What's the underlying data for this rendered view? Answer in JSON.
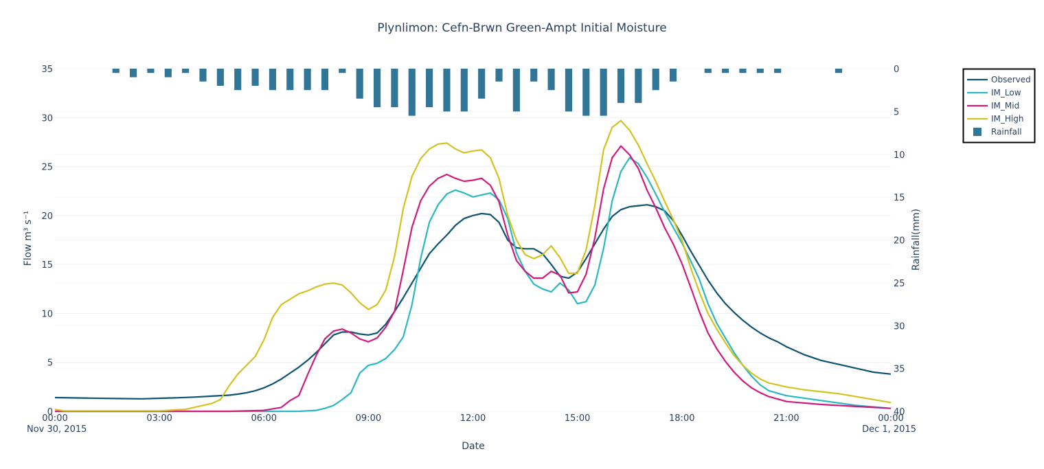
{
  "chart_data": {
    "type": "line",
    "title": "Plynlimon: Cefn-Brwn Green-Ampt Initial Moisture",
    "xlabel": "Date",
    "ylabel": "Flow m³ s⁻¹",
    "y2label": "Rainfall(mm)",
    "x_range": [
      "2015-11-30 00:00",
      "2015-12-01 00:00"
    ],
    "x_ticks": [
      {
        "time": "2015-11-30 00:00",
        "label": "00:00",
        "sublabel": "Nov 30, 2015"
      },
      {
        "time": "2015-11-30 03:00",
        "label": "03:00",
        "sublabel": ""
      },
      {
        "time": "2015-11-30 06:00",
        "label": "06:00",
        "sublabel": ""
      },
      {
        "time": "2015-11-30 09:00",
        "label": "09:00",
        "sublabel": ""
      },
      {
        "time": "2015-11-30 12:00",
        "label": "12:00",
        "sublabel": ""
      },
      {
        "time": "2015-11-30 15:00",
        "label": "15:00",
        "sublabel": ""
      },
      {
        "time": "2015-11-30 18:00",
        "label": "18:00",
        "sublabel": ""
      },
      {
        "time": "2015-11-30 21:00",
        "label": "21:00",
        "sublabel": ""
      },
      {
        "time": "2015-12-01 00:00",
        "label": "00:00",
        "sublabel": "Dec 1, 2015"
      }
    ],
    "ylim": [
      0,
      35
    ],
    "y_ticks": [
      0,
      5,
      10,
      15,
      20,
      25,
      30,
      35
    ],
    "y2lim": [
      0,
      40
    ],
    "y2_reversed": true,
    "y2_ticks": [
      0,
      5,
      10,
      15,
      20,
      25,
      30,
      35,
      40
    ],
    "legend_position": "top-right",
    "series": [
      {
        "name": "Observed",
        "kind": "line",
        "color": "#0b5371",
        "x": [
          "2015-11-30 00:00",
          "2015-11-30 01:00",
          "2015-11-30 02:00",
          "2015-11-30 02:30",
          "2015-11-30 03:00",
          "2015-11-30 03:30",
          "2015-11-30 04:00",
          "2015-11-30 04:30",
          "2015-11-30 05:00",
          "2015-11-30 05:15",
          "2015-11-30 05:30",
          "2015-11-30 05:45",
          "2015-11-30 06:00",
          "2015-11-30 06:15",
          "2015-11-30 06:30",
          "2015-11-30 06:45",
          "2015-11-30 07:00",
          "2015-11-30 07:15",
          "2015-11-30 07:30",
          "2015-11-30 07:45",
          "2015-11-30 08:00",
          "2015-11-30 08:15",
          "2015-11-30 08:30",
          "2015-11-30 08:45",
          "2015-11-30 09:00",
          "2015-11-30 09:15",
          "2015-11-30 09:30",
          "2015-11-30 09:45",
          "2015-11-30 10:00",
          "2015-11-30 10:15",
          "2015-11-30 10:30",
          "2015-11-30 10:45",
          "2015-11-30 11:00",
          "2015-11-30 11:15",
          "2015-11-30 11:30",
          "2015-11-30 11:45",
          "2015-11-30 12:00",
          "2015-11-30 12:15",
          "2015-11-30 12:30",
          "2015-11-30 12:45",
          "2015-11-30 13:00",
          "2015-11-30 13:15",
          "2015-11-30 13:30",
          "2015-11-30 13:45",
          "2015-11-30 14:00",
          "2015-11-30 14:15",
          "2015-11-30 14:30",
          "2015-11-30 14:45",
          "2015-11-30 15:00",
          "2015-11-30 15:15",
          "2015-11-30 15:30",
          "2015-11-30 15:45",
          "2015-11-30 16:00",
          "2015-11-30 16:15",
          "2015-11-30 16:30",
          "2015-11-30 16:45",
          "2015-11-30 17:00",
          "2015-11-30 17:15",
          "2015-11-30 17:30",
          "2015-11-30 17:45",
          "2015-11-30 18:00",
          "2015-11-30 18:15",
          "2015-11-30 18:30",
          "2015-11-30 18:45",
          "2015-11-30 19:00",
          "2015-11-30 19:15",
          "2015-11-30 19:30",
          "2015-11-30 19:45",
          "2015-11-30 20:00",
          "2015-11-30 20:15",
          "2015-11-30 20:30",
          "2015-11-30 20:45",
          "2015-11-30 21:00",
          "2015-11-30 21:30",
          "2015-11-30 22:00",
          "2015-11-30 22:30",
          "2015-11-30 23:00",
          "2015-11-30 23:30",
          "2015-12-01 00:00"
        ],
        "y": [
          1.4,
          1.35,
          1.3,
          1.28,
          1.33,
          1.38,
          1.45,
          1.55,
          1.65,
          1.75,
          1.9,
          2.1,
          2.4,
          2.8,
          3.3,
          3.9,
          4.5,
          5.2,
          6.0,
          6.9,
          7.8,
          8.1,
          8.1,
          7.9,
          7.8,
          8.0,
          8.9,
          10.2,
          11.6,
          13.1,
          14.6,
          16.1,
          17.1,
          18.0,
          19.0,
          19.7,
          20.0,
          20.2,
          20.1,
          19.3,
          17.5,
          16.7,
          16.6,
          16.6,
          16.1,
          15.0,
          13.8,
          13.6,
          14.2,
          15.6,
          17.1,
          18.6,
          19.9,
          20.6,
          20.9,
          21.0,
          21.1,
          20.9,
          20.5,
          19.5,
          18.0,
          16.4,
          14.9,
          13.4,
          12.1,
          11.0,
          10.1,
          9.3,
          8.6,
          8.0,
          7.5,
          7.1,
          6.6,
          5.8,
          5.2,
          4.8,
          4.4,
          4.0,
          3.8
        ]
      },
      {
        "name": "IM_Low",
        "kind": "line",
        "color": "#2ab7c0",
        "x": [
          "2015-11-30 00:00",
          "2015-11-30 01:00",
          "2015-11-30 02:00",
          "2015-11-30 03:00",
          "2015-11-30 04:00",
          "2015-11-30 05:00",
          "2015-11-30 06:00",
          "2015-11-30 07:00",
          "2015-11-30 07:30",
          "2015-11-30 07:45",
          "2015-11-30 08:00",
          "2015-11-30 08:15",
          "2015-11-30 08:30",
          "2015-11-30 08:45",
          "2015-11-30 09:00",
          "2015-11-30 09:15",
          "2015-11-30 09:30",
          "2015-11-30 09:45",
          "2015-11-30 10:00",
          "2015-11-30 10:15",
          "2015-11-30 10:30",
          "2015-11-30 10:45",
          "2015-11-30 11:00",
          "2015-11-30 11:15",
          "2015-11-30 11:30",
          "2015-11-30 11:45",
          "2015-11-30 12:00",
          "2015-11-30 12:15",
          "2015-11-30 12:30",
          "2015-11-30 12:45",
          "2015-11-30 13:00",
          "2015-11-30 13:15",
          "2015-11-30 13:30",
          "2015-11-30 13:45",
          "2015-11-30 14:00",
          "2015-11-30 14:15",
          "2015-11-30 14:30",
          "2015-11-30 14:45",
          "2015-11-30 15:00",
          "2015-11-30 15:15",
          "2015-11-30 15:30",
          "2015-11-30 15:45",
          "2015-11-30 16:00",
          "2015-11-30 16:15",
          "2015-11-30 16:30",
          "2015-11-30 16:45",
          "2015-11-30 17:00",
          "2015-11-30 17:15",
          "2015-11-30 17:30",
          "2015-11-30 17:45",
          "2015-11-30 18:00",
          "2015-11-30 18:15",
          "2015-11-30 18:30",
          "2015-11-30 18:45",
          "2015-11-30 19:00",
          "2015-11-30 19:15",
          "2015-11-30 19:30",
          "2015-11-30 19:45",
          "2015-11-30 20:00",
          "2015-11-30 20:15",
          "2015-11-30 20:30",
          "2015-11-30 21:00",
          "2015-11-30 22:00",
          "2015-11-30 23:00",
          "2015-12-01 00:00"
        ],
        "y": [
          0,
          0,
          0,
          0,
          0,
          0,
          0,
          0,
          0.1,
          0.3,
          0.6,
          1.2,
          1.9,
          3.9,
          4.7,
          4.9,
          5.4,
          6.3,
          7.6,
          10.9,
          15.6,
          19.3,
          21.1,
          22.2,
          22.6,
          22.3,
          21.9,
          22.1,
          22.3,
          21.6,
          19.7,
          16.2,
          14.3,
          13.0,
          12.5,
          12.2,
          13.1,
          12.4,
          11.0,
          11.2,
          12.9,
          16.6,
          21.5,
          24.5,
          25.9,
          25.3,
          23.9,
          22.2,
          20.4,
          18.8,
          17.2,
          15.4,
          13.5,
          11.0,
          9.0,
          7.5,
          6.0,
          4.7,
          3.6,
          2.7,
          2.1,
          1.6,
          1.1,
          0.6,
          0.3
        ]
      },
      {
        "name": "IM_Mid",
        "kind": "line",
        "color": "#d01b7d",
        "x": [
          "2015-11-30 00:00",
          "2015-11-30 01:00",
          "2015-11-30 02:00",
          "2015-11-30 03:00",
          "2015-11-30 04:00",
          "2015-11-30 05:00",
          "2015-11-30 06:00",
          "2015-11-30 06:30",
          "2015-11-30 06:45",
          "2015-11-30 07:00",
          "2015-11-30 07:15",
          "2015-11-30 07:30",
          "2015-11-30 07:45",
          "2015-11-30 08:00",
          "2015-11-30 08:15",
          "2015-11-30 08:30",
          "2015-11-30 08:45",
          "2015-11-30 09:00",
          "2015-11-30 09:15",
          "2015-11-30 09:30",
          "2015-11-30 09:45",
          "2015-11-30 10:00",
          "2015-11-30 10:15",
          "2015-11-30 10:30",
          "2015-11-30 10:45",
          "2015-11-30 11:00",
          "2015-11-30 11:15",
          "2015-11-30 11:30",
          "2015-11-30 11:45",
          "2015-11-30 12:00",
          "2015-11-30 12:15",
          "2015-11-30 12:30",
          "2015-11-30 12:45",
          "2015-11-30 13:00",
          "2015-11-30 13:15",
          "2015-11-30 13:30",
          "2015-11-30 13:45",
          "2015-11-30 14:00",
          "2015-11-30 14:15",
          "2015-11-30 14:30",
          "2015-11-30 14:45",
          "2015-11-30 15:00",
          "2015-11-30 15:15",
          "2015-11-30 15:30",
          "2015-11-30 15:45",
          "2015-11-30 16:00",
          "2015-11-30 16:15",
          "2015-11-30 16:30",
          "2015-11-30 16:45",
          "2015-11-30 17:00",
          "2015-11-30 17:15",
          "2015-11-30 17:30",
          "2015-11-30 17:45",
          "2015-11-30 18:00",
          "2015-11-30 18:15",
          "2015-11-30 18:30",
          "2015-11-30 18:45",
          "2015-11-30 19:00",
          "2015-11-30 19:15",
          "2015-11-30 19:30",
          "2015-11-30 19:45",
          "2015-11-30 20:00",
          "2015-11-30 20:15",
          "2015-11-30 20:30",
          "2015-11-30 21:00",
          "2015-11-30 22:00",
          "2015-11-30 23:00",
          "2015-12-01 00:00"
        ],
        "y": [
          0,
          0,
          0,
          0,
          0,
          0,
          0.1,
          0.4,
          1.1,
          1.6,
          3.7,
          5.7,
          7.4,
          8.2,
          8.4,
          8.0,
          7.4,
          7.1,
          7.5,
          8.6,
          10.2,
          14.4,
          18.8,
          21.5,
          23.0,
          23.8,
          24.2,
          23.8,
          23.5,
          23.6,
          23.8,
          23.1,
          21.4,
          18.0,
          15.4,
          14.3,
          13.6,
          13.6,
          14.3,
          13.9,
          12.1,
          12.2,
          14.0,
          17.7,
          22.7,
          25.9,
          27.1,
          26.2,
          24.8,
          22.6,
          20.8,
          18.8,
          17.1,
          15.1,
          12.7,
          10.2,
          8.0,
          6.4,
          5.1,
          4.0,
          3.1,
          2.4,
          1.9,
          1.5,
          1.0,
          0.7,
          0.5,
          0.3
        ]
      },
      {
        "name": "IM_High",
        "kind": "line",
        "color": "#d3c21f",
        "x": [
          "2015-11-30 00:00",
          "2015-11-30 00:15",
          "2015-11-30 01:00",
          "2015-11-30 02:00",
          "2015-11-30 03:00",
          "2015-11-30 03:45",
          "2015-11-30 04:15",
          "2015-11-30 04:30",
          "2015-11-30 04:45",
          "2015-11-30 05:00",
          "2015-11-30 05:15",
          "2015-11-30 05:30",
          "2015-11-30 05:45",
          "2015-11-30 06:00",
          "2015-11-30 06:15",
          "2015-11-30 06:30",
          "2015-11-30 07:00",
          "2015-11-30 07:15",
          "2015-11-30 07:30",
          "2015-11-30 07:45",
          "2015-11-30 08:00",
          "2015-11-30 08:15",
          "2015-11-30 08:30",
          "2015-11-30 08:45",
          "2015-11-30 09:00",
          "2015-11-30 09:15",
          "2015-11-30 09:30",
          "2015-11-30 09:45",
          "2015-11-30 10:00",
          "2015-11-30 10:15",
          "2015-11-30 10:30",
          "2015-11-30 10:45",
          "2015-11-30 11:00",
          "2015-11-30 11:15",
          "2015-11-30 11:30",
          "2015-11-30 11:45",
          "2015-11-30 12:00",
          "2015-11-30 12:15",
          "2015-11-30 12:30",
          "2015-11-30 12:45",
          "2015-11-30 13:00",
          "2015-11-30 13:15",
          "2015-11-30 13:30",
          "2015-11-30 13:45",
          "2015-11-30 14:00",
          "2015-11-30 14:15",
          "2015-11-30 14:30",
          "2015-11-30 14:45",
          "2015-11-30 15:00",
          "2015-11-30 15:15",
          "2015-11-30 15:30",
          "2015-11-30 15:45",
          "2015-11-30 16:00",
          "2015-11-30 16:15",
          "2015-11-30 16:30",
          "2015-11-30 16:45",
          "2015-11-30 17:00",
          "2015-11-30 17:15",
          "2015-11-30 17:30",
          "2015-11-30 17:45",
          "2015-11-30 18:00",
          "2015-11-30 18:15",
          "2015-11-30 18:30",
          "2015-11-30 18:45",
          "2015-11-30 19:00",
          "2015-11-30 19:15",
          "2015-11-30 19:30",
          "2015-11-30 19:45",
          "2015-11-30 20:00",
          "2015-11-30 20:15",
          "2015-11-30 20:30",
          "2015-11-30 21:00",
          "2015-11-30 21:30",
          "2015-11-30 22:00",
          "2015-11-30 22:30",
          "2015-11-30 23:00",
          "2015-11-30 23:30",
          "2015-12-01 00:00"
        ],
        "y": [
          0.2,
          0.05,
          0.05,
          0.05,
          0.05,
          0.2,
          0.6,
          0.8,
          1.2,
          2.6,
          3.8,
          4.7,
          5.6,
          7.3,
          9.6,
          10.9,
          12.0,
          12.3,
          12.7,
          13.0,
          13.1,
          12.9,
          12.1,
          11.1,
          10.4,
          10.9,
          12.4,
          15.8,
          20.7,
          24.0,
          25.8,
          26.8,
          27.3,
          27.4,
          26.8,
          26.4,
          26.6,
          26.7,
          25.9,
          23.8,
          20.0,
          17.5,
          16.0,
          15.6,
          16.0,
          16.9,
          15.7,
          14.1,
          14.1,
          16.5,
          21.0,
          26.7,
          29.0,
          29.7,
          28.7,
          27.2,
          25.3,
          23.5,
          21.5,
          19.6,
          17.5,
          14.7,
          12.2,
          10.0,
          8.4,
          7.0,
          5.7,
          4.7,
          3.9,
          3.3,
          2.9,
          2.5,
          2.2,
          2.0,
          1.8,
          1.5,
          1.2,
          0.9
        ]
      },
      {
        "name": "Rainfall",
        "kind": "bar",
        "axis": "y2",
        "color": "#327697",
        "bar_width_minutes": 12,
        "x": [
          "2015-11-30 01:45",
          "2015-11-30 02:00",
          "2015-11-30 02:15",
          "2015-11-30 02:30",
          "2015-11-30 02:45",
          "2015-11-30 03:00",
          "2015-11-30 03:15",
          "2015-11-30 03:30",
          "2015-11-30 03:45",
          "2015-11-30 04:00",
          "2015-11-30 04:15",
          "2015-11-30 04:30",
          "2015-11-30 04:45",
          "2015-11-30 05:00",
          "2015-11-30 05:15",
          "2015-11-30 05:30",
          "2015-11-30 05:45",
          "2015-11-30 06:00",
          "2015-11-30 06:15",
          "2015-11-30 06:30",
          "2015-11-30 06:45",
          "2015-11-30 07:00",
          "2015-11-30 07:15",
          "2015-11-30 07:30",
          "2015-11-30 07:45",
          "2015-11-30 08:00",
          "2015-11-30 08:15",
          "2015-11-30 08:30",
          "2015-11-30 08:45",
          "2015-11-30 09:00",
          "2015-11-30 09:15",
          "2015-11-30 09:30",
          "2015-11-30 09:45",
          "2015-11-30 10:00",
          "2015-11-30 10:15",
          "2015-11-30 10:30",
          "2015-11-30 10:45",
          "2015-11-30 11:00",
          "2015-11-30 11:15",
          "2015-11-30 11:30",
          "2015-11-30 11:45",
          "2015-11-30 12:00",
          "2015-11-30 12:15",
          "2015-11-30 12:30",
          "2015-11-30 12:45",
          "2015-11-30 13:00",
          "2015-11-30 13:15",
          "2015-11-30 13:30",
          "2015-11-30 13:45",
          "2015-11-30 14:00",
          "2015-11-30 14:15",
          "2015-11-30 14:30",
          "2015-11-30 14:45",
          "2015-11-30 15:00",
          "2015-11-30 15:15",
          "2015-11-30 15:30",
          "2015-11-30 15:45",
          "2015-11-30 16:00",
          "2015-11-30 16:15",
          "2015-11-30 16:30",
          "2015-11-30 16:45",
          "2015-11-30 17:00",
          "2015-11-30 17:15",
          "2015-11-30 17:30",
          "2015-11-30 17:45",
          "2015-11-30 18:00",
          "2015-11-30 18:15",
          "2015-11-30 18:30",
          "2015-11-30 18:45",
          "2015-11-30 19:00",
          "2015-11-30 19:15",
          "2015-11-30 19:30",
          "2015-11-30 19:45",
          "2015-11-30 20:00",
          "2015-11-30 20:15",
          "2015-11-30 20:30",
          "2015-11-30 20:45",
          "2015-11-30 21:00",
          "2015-11-30 22:30"
        ],
        "y": [
          0.5,
          0,
          1,
          0,
          0.5,
          0,
          1,
          0,
          0.5,
          0,
          1.5,
          0,
          2,
          0,
          2.5,
          0,
          2,
          0,
          2.5,
          0,
          2.5,
          0,
          2.5,
          0,
          2.5,
          0,
          0.5,
          0,
          3.5,
          0,
          4.5,
          0,
          4.5,
          0,
          5.5,
          0,
          4.5,
          0,
          5,
          0,
          5,
          0,
          3.5,
          0,
          1.5,
          0,
          5,
          0,
          1.5,
          0,
          2.5,
          0,
          5,
          0,
          5.5,
          0,
          5.5,
          0,
          4,
          0,
          4,
          0,
          2.5,
          0,
          1.5,
          0,
          0,
          0,
          0.5,
          0,
          0.5,
          0,
          0.5,
          0,
          0.5,
          0,
          0.5,
          0,
          0.5
        ]
      }
    ]
  }
}
